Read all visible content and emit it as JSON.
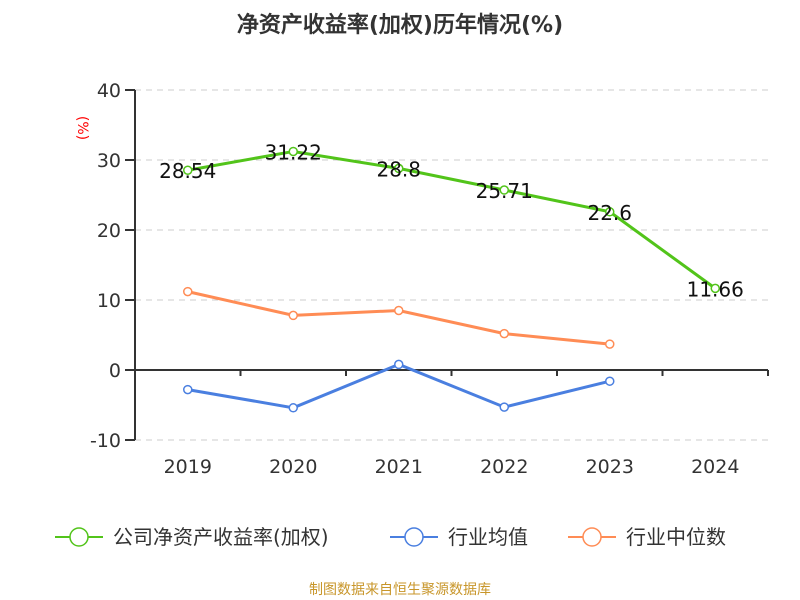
{
  "chart_data": {
    "type": "line",
    "title": "净资产收益率(加权)历年情况(%)",
    "ylabel": "(%)",
    "categories": [
      "2019",
      "2020",
      "2021",
      "2022",
      "2023",
      "2024"
    ],
    "ylim": [
      -10,
      40
    ],
    "yticks": [
      40,
      30,
      20,
      10,
      0,
      -10
    ],
    "grid": true,
    "legend_position": "bottom",
    "series": [
      {
        "name": "公司净资产收益率(加权)",
        "color": "#52c41a",
        "values": [
          28.54,
          31.22,
          28.8,
          25.71,
          22.6,
          11.66
        ],
        "labels": [
          "28.54",
          "31.22",
          "28.8",
          "25.71",
          "22.6",
          "11.66"
        ]
      },
      {
        "name": "行业均值",
        "color": "#4a7fe0",
        "values": [
          -2.8,
          -5.4,
          0.8,
          -5.3,
          -1.6,
          null
        ]
      },
      {
        "name": "行业中位数",
        "color": "#ff8c55",
        "values": [
          11.2,
          7.8,
          8.5,
          5.2,
          3.7,
          null
        ]
      }
    ]
  },
  "source": "制图数据来自恒生聚源数据库"
}
